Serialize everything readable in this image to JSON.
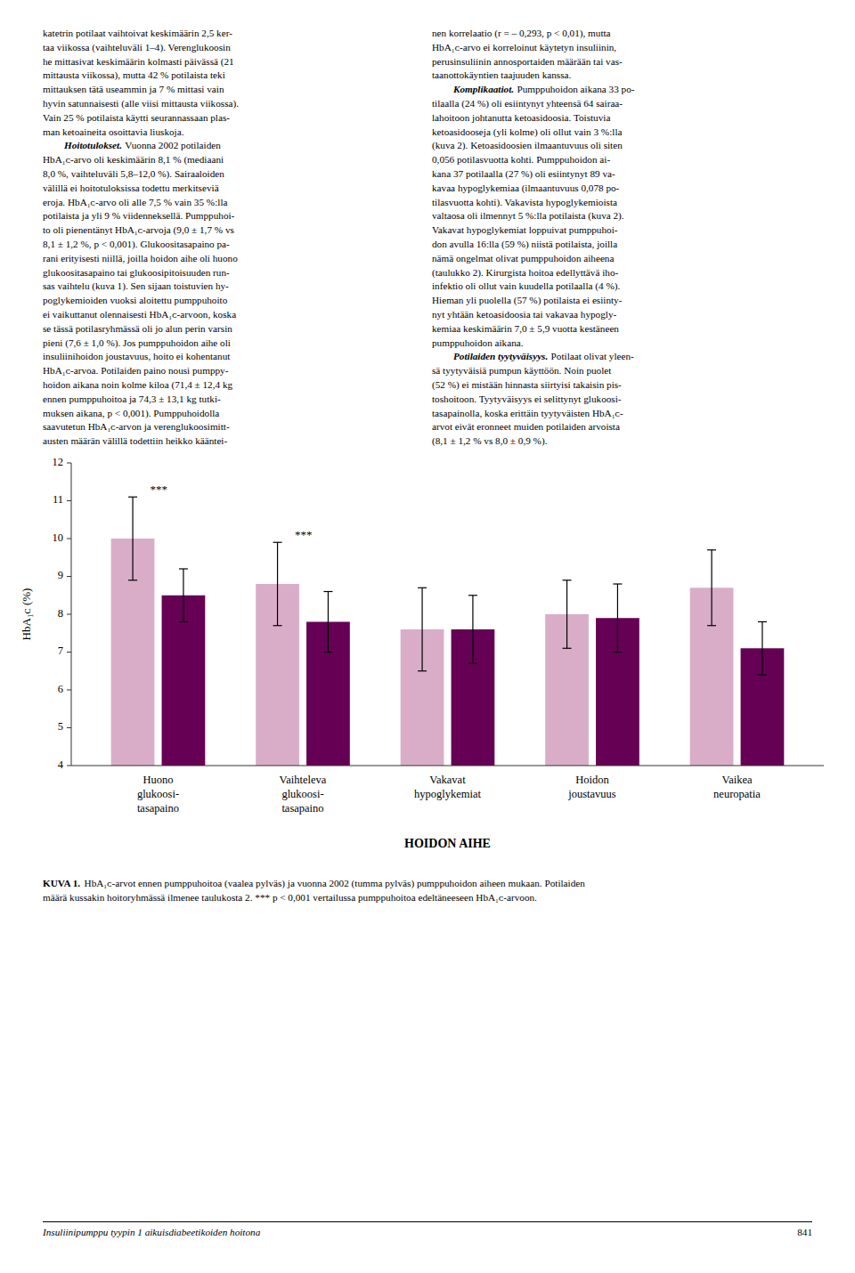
{
  "chart_data": {
    "type": "bar",
    "categories": [
      "Huono\nglukoosi-\ntasapaino",
      "Vaihteleva\nglukoosi-\ntasapaino",
      "Vakavat\nhypoglykemiat",
      "Hoidon\njoustavuus",
      "Vaikea\nneuropatia"
    ],
    "series": [
      {
        "color": "#d9adc8",
        "values": [
          10.0,
          8.8,
          7.6,
          8.0,
          8.7
        ],
        "errors": [
          1.1,
          1.1,
          1.1,
          0.9,
          1.0
        ],
        "significance": [
          "***",
          "***",
          null,
          null,
          null
        ]
      },
      {
        "color": "#660055",
        "values": [
          8.5,
          7.8,
          7.6,
          7.9,
          7.1
        ],
        "errors": [
          0.7,
          0.8,
          0.9,
          0.9,
          0.7
        ]
      }
    ],
    "xlabel": "HOIDON AIHE",
    "ylabel": "HbA₁ᴄ (%)",
    "ylim": [
      4,
      12
    ],
    "yticks": [
      4,
      5,
      6,
      7,
      8,
      9,
      10,
      11,
      12
    ],
    "grid": false
  },
  "page_text": {
    "left": [
      "katetrin potilaat vaihtoivat keskimäärin 2,5 ker-",
      "taa viikossa (vaihteluväli 1–4). Verenglukoosin",
      "he mittasivat keskimäärin kolmasti päivässä (21",
      "mittausta viikossa), mutta 42 % potilaista teki",
      "mittauksen tätä useammin ja 7 % mittasi vain",
      "hyvin satunnaisesti (alle viisi mittausta viikossa).",
      "Vain 25 % potilaista käytti seurannassaan plas-",
      "man ketoaineita osoittavia liuskoja.",
      {
        "heading": "Hoitotulokset.",
        "text": "Vuonna 2002 potilaiden"
      },
      "HbA₁ᴄ-arvo oli keskimäärin 8,1 % (mediaani",
      "8,0 %, vaihteluväli 5,8–12,0 %). Sairaaloiden",
      "välillä ei hoitotuloksissa todettu merkitseviä",
      "eroja. HbA₁ᴄ-arvo oli alle 7,5 % vain 35 %:lla",
      "potilaista ja yli 9 % viidenneksellä. Pumppuhoi-",
      "to oli pienentänyt HbA₁ᴄ-arvoja (9,0 ± 1,7 % vs",
      "8,1 ± 1,2 %, p < 0,001). Glukoositasapaino pa-",
      "rani erityisesti niillä, joilla hoidon aihe oli huono",
      "glukoositasapaino tai glukoosipitoisuuden run-",
      "sas vaihtelu (kuva 1). Sen sijaan toistuvien hy-",
      "poglykemioiden vuoksi aloitettu pumppuhoito",
      "ei vaikuttanut olennaisesti HbA₁ᴄ-arvoon, koska",
      "se tässä potilasryhmässä oli jo alun perin varsin",
      "pieni (7,6 ± 1,0 %). Jos pumppuhoidon aihe oli",
      "insuliinihoidon joustavuus, hoito ei kohentanut",
      "HbA₁ᴄ-arvoa. Potilaiden paino nousi pumppу-",
      "hoidon aikana noin kolme kiloa (71,4 ± 12,4 kg",
      "ennen pumppuhoitoa ja 74,3 ± 13,1 kg tutki-",
      "muksen aikana, p < 0,001). Pumppuhoidolla",
      "saavutetun HbA₁ᴄ-arvon ja verenglukoosimitt-",
      "austen määrän välillä todettiin heikko kääntei-"
    ],
    "right": [
      "nen korrelaatio (r = – 0,293, p < 0,01), mutta",
      "HbA₁ᴄ-arvo ei korreloinut käytetyn insuliinin,",
      "perusinsuliinin annosportaiden määrään tai vas-",
      "taanottokäyntien taajuuden kanssa.",
      {
        "heading": "Komplikaatiot.",
        "text": "Pumppuhoidon aikana 33 po-"
      },
      "tilaalla (24 %) oli esiintynyt yhteensä 64 sairaa-",
      "lahoitoon johtanutta ketoasidoosia. Toistuvia",
      "ketoasidooseja (yli kolme) oli ollut vain 3 %:lla",
      "(kuva 2). Ketoasidoosien ilmaantuvuus oli siten",
      "0,056 potilasvuotta kohti. Pumppuhoidon ai-",
      "kana 37 potilaalla (27 %) oli esiintynyt 89 va-",
      "kavaa hypoglykemiaa (ilmaantuvuus 0,078 po-",
      "tilasvuotta kohti). Vakavista hypoglykemioista",
      "valtaosa oli ilmennyt 5 %:lla potilaista (kuva 2).",
      "Vakavat hypoglykemiat loppuivat pumppuhoi-",
      "don avulla 16:lla (59 %) niistä potilaista, joilla",
      "nämä ongelmat olivat pumppuhoidon aiheena",
      "(taulukko 2). Kirurgista hoitoa edellyttävä iho-",
      "infektio oli ollut vain kuudella potilaalla (4 %).",
      "Hieman yli puolella (57 %) potilaista ei esiinty-",
      "nyt yhtään ketoasidoosia tai vakavaa hypogly-",
      "kemiaa keskimäärin 7,0 ± 5,9 vuotta kestäneen",
      "pumppuhoidon aikana.",
      {
        "heading": "Potilaiden tyytyväisyys.",
        "text": "Potilaat olivat yleen-"
      },
      "sä tyytyväisiä pumpun käyttöön. Noin puolet",
      "(52 %) ei mistään hinnasta siirtyisi takaisin pis-",
      "toshoitoon. Tyytyväisyys ei selittynyt glukoosi-",
      "tasapainolla, koska erittäin tyytyväisten HbA₁ᴄ-",
      "arvot eivät eronneet muiden potilaiden arvoista",
      "(8,1 ± 1,2 % vs 8,0 ± 0,9 %)."
    ],
    "caption_label": "KUVA 1.",
    "caption": [
      "HbA₁ᴄ-arvot ennen pumppuhoitoa (vaalea pylväs) ja vuonna 2002 (tumma pylväs) pumppuhoidon aiheen mukaan. Potilaiden",
      "määrä kussakin hoitoryhmässä ilmenee taulukosta 2. *** p < 0,001 vertailussa pumppuhoitoa edeltäneeseen HbA₁ᴄ-arvoon."
    ],
    "footer_title": "Insuliinipumppu tyypin 1 aikuisdiabeetikoiden hoitona",
    "page_number": "841"
  }
}
